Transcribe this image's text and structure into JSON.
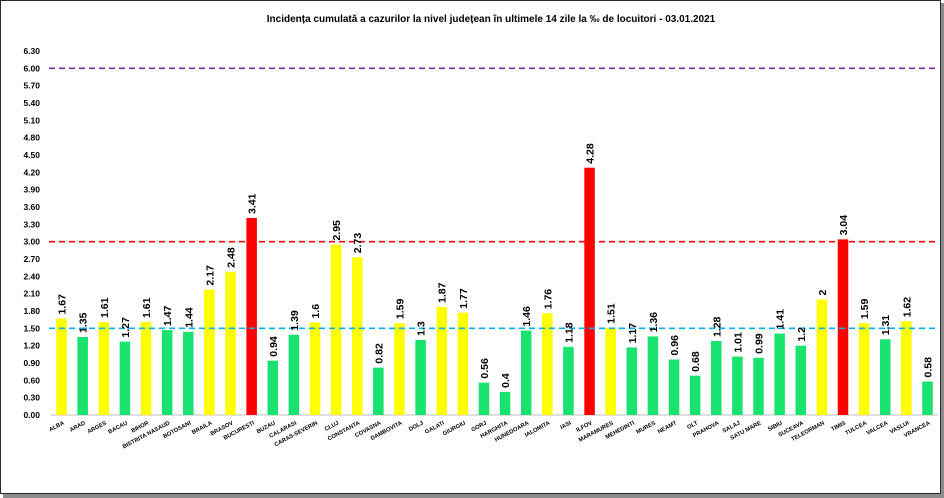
{
  "chart_data": {
    "type": "bar",
    "title": "Incidența cumulată a cazurilor la nivel județean în ultimele 14 zile la ‰ de locuitori - 03.01.2021",
    "categories": [
      "ALBA",
      "ARAD",
      "ARGES",
      "BACAU",
      "BIHOR",
      "BISTRITA NASAUD",
      "BOTOSANI",
      "BRAILA",
      "BRASOV",
      "BUCURESTI",
      "BUZAU",
      "CALARASI",
      "CARAS-SEVERIN",
      "CLUJ",
      "CONSTANTA",
      "COVASNA",
      "DAMBOVITA",
      "DOLJ",
      "GALATI",
      "GIURGIU",
      "GORJ",
      "HARGHITA",
      "HUNEDOARA",
      "IALOMITA",
      "IASI",
      "ILFOV",
      "MARAMURES",
      "MEHEDINTI",
      "MURES",
      "NEAMT",
      "OLT",
      "PRAHOVA",
      "SALAJ",
      "SATU MARE",
      "SIBIU",
      "SUCEAVA",
      "TELEORMAN",
      "TIMIS",
      "TULCEA",
      "VALCEA",
      "VASLUI",
      "VRANCEA"
    ],
    "values": [
      1.67,
      1.35,
      1.61,
      1.27,
      1.61,
      1.47,
      1.44,
      2.17,
      2.48,
      3.41,
      0.94,
      1.39,
      1.6,
      2.95,
      2.73,
      0.82,
      1.59,
      1.3,
      1.87,
      1.77,
      0.56,
      0.4,
      1.46,
      1.76,
      1.18,
      4.28,
      1.51,
      1.17,
      1.36,
      0.96,
      0.68,
      1.28,
      1.01,
      0.99,
      1.41,
      1.2,
      2,
      3.04,
      1.59,
      1.31,
      1.62,
      0.58
    ],
    "bar_colors": [
      "#FFFF00",
      "#19E36F",
      "#FFFF00",
      "#19E36F",
      "#FFFF00",
      "#19E36F",
      "#19E36F",
      "#FFFF00",
      "#FFFF00",
      "#FF0000",
      "#19E36F",
      "#19E36F",
      "#FFFF00",
      "#FFFF00",
      "#FFFF00",
      "#19E36F",
      "#FFFF00",
      "#19E36F",
      "#FFFF00",
      "#FFFF00",
      "#19E36F",
      "#19E36F",
      "#19E36F",
      "#FFFF00",
      "#19E36F",
      "#FF0000",
      "#FFFF00",
      "#19E36F",
      "#19E36F",
      "#19E36F",
      "#19E36F",
      "#19E36F",
      "#19E36F",
      "#19E36F",
      "#19E36F",
      "#19E36F",
      "#FFFF00",
      "#FF0000",
      "#FFFF00",
      "#19E36F",
      "#FFFF00",
      "#19E36F"
    ],
    "ylim": [
      0,
      6.3
    ],
    "yticks": [
      "0.00",
      "0.30",
      "0.60",
      "0.90",
      "1.20",
      "1.50",
      "1.80",
      "2.10",
      "2.40",
      "2.70",
      "3.00",
      "3.30",
      "3.60",
      "3.90",
      "4.20",
      "4.50",
      "4.80",
      "5.10",
      "5.40",
      "5.70",
      "6.00",
      "6.30"
    ],
    "reference_lines": [
      {
        "value": 6.0,
        "color": "#7030A0"
      },
      {
        "value": 3.0,
        "color": "#FF0000"
      },
      {
        "value": 1.5,
        "color": "#00B0F0"
      }
    ],
    "grid": false
  }
}
